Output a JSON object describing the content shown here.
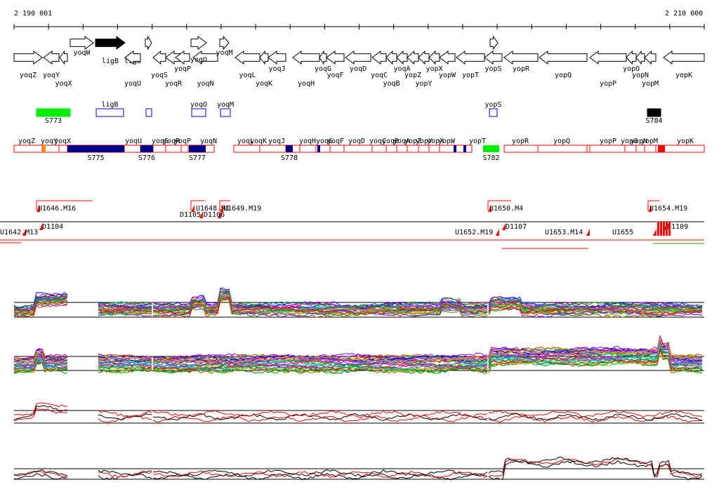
{
  "coordinates": {
    "start_label": "2 190 001",
    "end_label": "2 210 000"
  },
  "genes_top": [
    {
      "name": "yoqW",
      "strand": "+",
      "x1": 100,
      "x2": 133,
      "row": 0
    },
    {
      "name": "ligB",
      "strand": "+",
      "x1": 136,
      "x2": 178,
      "row": 0,
      "filled": true
    },
    {
      "name": "",
      "strand": "+",
      "x1": 207,
      "x2": 216,
      "row": 0
    },
    {
      "name": "",
      "strand": "+",
      "x1": 272,
      "x2": 294,
      "row": 0
    },
    {
      "name": "yoqO",
      "strand": "+",
      "x1": 272,
      "x2": 294,
      "row": 1
    },
    {
      "name": "yoqM",
      "strand": "+",
      "x1": 313,
      "x2": 326,
      "row": 0
    },
    {
      "name": "",
      "strand": "+",
      "x1": 698,
      "x2": 709,
      "row": 0
    }
  ],
  "genes_main": [
    {
      "name": "yoqZ",
      "strand": "+",
      "x1": 20,
      "x2": 60,
      "lab": "b"
    },
    {
      "name": "yoqY",
      "strand": "-",
      "x1": 62,
      "x2": 84,
      "lab": "b"
    },
    {
      "name": "yoqX",
      "strand": "-",
      "x1": 85,
      "x2": 96,
      "lab": "c"
    },
    {
      "name": "ligB",
      "strand": "-",
      "x1": 178,
      "x2": 200,
      "lab": "n"
    },
    {
      "name": "yoqU",
      "strand": "-",
      "x1": 178,
      "x2": 200,
      "lab": "c"
    },
    {
      "name": "yoqS",
      "strand": "-",
      "x1": 218,
      "x2": 236,
      "lab": "b"
    },
    {
      "name": "yoqR",
      "strand": "-",
      "x1": 236,
      "x2": 258,
      "lab": "c"
    },
    {
      "name": "yoqP",
      "strand": "-",
      "x1": 250,
      "x2": 270,
      "lab": "a"
    },
    {
      "name": "yoqN",
      "strand": "-",
      "x1": 275,
      "x2": 310,
      "lab": "c"
    },
    {
      "name": "yoqL",
      "strand": "-",
      "x1": 335,
      "x2": 370,
      "lab": "b"
    },
    {
      "name": "yoqK",
      "strand": "-",
      "x1": 370,
      "x2": 382,
      "lab": "c"
    },
    {
      "name": "yoqJ",
      "strand": "-",
      "x1": 382,
      "x2": 407,
      "lab": "a"
    },
    {
      "name": "yoqH",
      "strand": "-",
      "x1": 417,
      "x2": 455,
      "lab": "c"
    },
    {
      "name": "yoqG",
      "strand": "-",
      "x1": 455,
      "x2": 465,
      "lab": "a"
    },
    {
      "name": "yoqF",
      "strand": "-",
      "x1": 465,
      "x2": 490,
      "lab": "b"
    },
    {
      "name": "yoqD",
      "strand": "-",
      "x1": 492,
      "x2": 528,
      "lab": "a"
    },
    {
      "name": "yoqC",
      "strand": "-",
      "x1": 530,
      "x2": 550,
      "lab": "b"
    },
    {
      "name": "yoqB",
      "strand": "-",
      "x1": 550,
      "x2": 565,
      "lab": "c"
    },
    {
      "name": "yoqA",
      "strand": "-",
      "x1": 565,
      "x2": 580,
      "lab": "a"
    },
    {
      "name": "yopZ",
      "strand": "-",
      "x1": 580,
      "x2": 596,
      "lab": "b"
    },
    {
      "name": "yopY",
      "strand": "-",
      "x1": 596,
      "x2": 611,
      "lab": "c"
    },
    {
      "name": "yopX",
      "strand": "-",
      "x1": 611,
      "x2": 626,
      "lab": "a"
    },
    {
      "name": "yopW",
      "strand": "-",
      "x1": 626,
      "x2": 648,
      "lab": "b"
    },
    {
      "name": "yopT",
      "strand": "-",
      "x1": 650,
      "x2": 690,
      "lab": "b"
    },
    {
      "name": "yopS",
      "strand": "-",
      "x1": 690,
      "x2": 715,
      "lab": "a"
    },
    {
      "name": "yopR",
      "strand": "-",
      "x1": 718,
      "x2": 766,
      "lab": "a"
    },
    {
      "name": "yopQ",
      "strand": "-",
      "x1": 768,
      "x2": 836,
      "lab": "b"
    },
    {
      "name": "yopP",
      "strand": "-",
      "x1": 840,
      "x2": 892,
      "lab": "c"
    },
    {
      "name": "yopO",
      "strand": "-",
      "x1": 892,
      "x2": 906,
      "lab": "a"
    },
    {
      "name": "yopN",
      "strand": "-",
      "x1": 906,
      "x2": 918,
      "lab": "b"
    },
    {
      "name": "yopM",
      "strand": "-",
      "x1": 918,
      "x2": 934,
      "lab": "c"
    },
    {
      "name": "yopK",
      "strand": "-",
      "x1": 945,
      "x2": 1003,
      "lab": "b"
    }
  ],
  "feature_track": [
    {
      "name": "S773",
      "x1": 52,
      "x2": 100,
      "style": "green",
      "label_below": true
    },
    {
      "name": "ligB",
      "x1": 137,
      "x2": 176,
      "style": "outline",
      "label_above": true
    },
    {
      "name": "",
      "x1": 208,
      "x2": 216,
      "style": "outline"
    },
    {
      "name": "yoqO",
      "x1": 273,
      "x2": 293,
      "style": "outline",
      "label_above": true
    },
    {
      "name": "yoqM",
      "x1": 314,
      "x2": 328,
      "style": "outline",
      "label_above": true
    },
    {
      "name": "yopS",
      "x1": 697,
      "x2": 708,
      "style": "outline",
      "label_above": true
    },
    {
      "name": "S784",
      "x1": 922,
      "x2": 941,
      "style": "black",
      "label_below": true
    }
  ],
  "annotation_row": {
    "labels": [
      "yoqZ",
      "yoqY",
      "yoqX",
      "yoqU",
      "yoqS",
      "yoqR",
      "yoqP",
      "yoqN",
      "yoqL",
      "yoqK",
      "yoqJ",
      "yoqH",
      "yoqG",
      "yoqF",
      "yoqD",
      "yoqC",
      "yoqB",
      "yoqA",
      "yopZ",
      "yopY",
      "yopX",
      "yopW",
      "yopT",
      "yopR",
      "yopQ",
      "yopP",
      "yopO",
      "yopN",
      "yopM",
      "yopK"
    ],
    "blocks": [
      {
        "name": "S775",
        "x1": 96,
        "x2": 177
      },
      {
        "name": "S776",
        "x1": 200,
        "x2": 218
      },
      {
        "name": "S777",
        "x1": 269,
        "x2": 293
      },
      {
        "name": "S778",
        "x1": 407,
        "x2": 417
      }
    ],
    "green_block": {
      "name": "S782",
      "x1": 688,
      "x2": 711
    }
  },
  "probes": {
    "labels": [
      "U1646.M16",
      "U1648.M1",
      "U1649.M19",
      "U1650.M4",
      "U1654.M19",
      "D1104",
      "D1105",
      "D1106",
      "D1107",
      "U1653.M14",
      "U1642.M13",
      "U1652.M19",
      "U1655",
      "D1109"
    ]
  },
  "expression_tracks": [
    "track-1",
    "track-2",
    "track-3",
    "track-4"
  ],
  "colors": {
    "gene_outline": "#000000",
    "track_red": "#ff0000",
    "track_blue": "#0000cc",
    "navy": "#00008b",
    "green": "#00ee00"
  }
}
